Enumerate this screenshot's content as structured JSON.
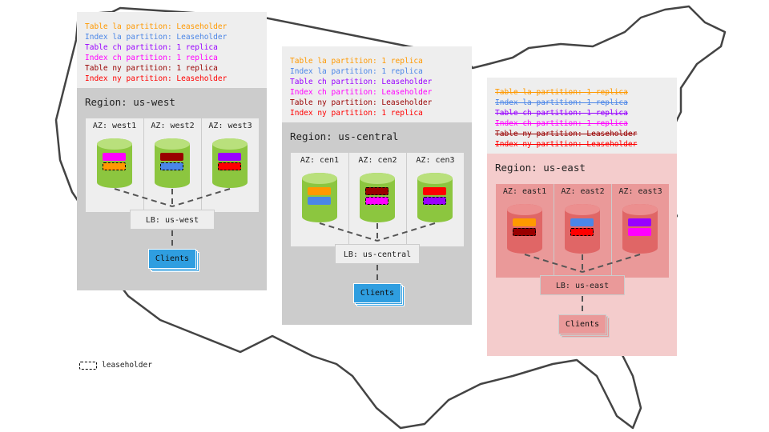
{
  "leaseholder_legend": {
    "label": "leaseholder"
  },
  "regions": [
    {
      "key": "us-west",
      "title": "Region: us-west",
      "theme": {
        "region_bg": "#cccccc",
        "az_bg": "#eeeeee",
        "az_border": "#cccccc",
        "cyl": "#8cc63f",
        "cyl_top": "#b9e07c",
        "lb_bg": "#eeeeee",
        "lb_border": "#cccccc",
        "clients_bg": "#2f9ee0",
        "clients_border": "#ffffff"
      },
      "legend": [
        {
          "text": "Table la partition: Leaseholder",
          "color": "#ff9900",
          "strike": false
        },
        {
          "text": "Index la partition: Leaseholder",
          "color": "#4a86e8",
          "strike": false
        },
        {
          "text": "Table ch partition: 1 replica",
          "color": "#9900ff",
          "strike": false
        },
        {
          "text": "Index ch partition: 1 replica",
          "color": "#ff00ff",
          "strike": false
        },
        {
          "text": "Table ny partition: 1 replica",
          "color": "#990000",
          "strike": false
        },
        {
          "text": "Index ny partition: Leaseholder",
          "color": "#ff0000",
          "strike": false
        }
      ],
      "azs": [
        {
          "label": "AZ: west1",
          "shards": [
            {
              "color": "#ff00ff",
              "leaseholder": false
            },
            {
              "color": "#ff9900",
              "leaseholder": true
            }
          ]
        },
        {
          "label": "AZ: west2",
          "shards": [
            {
              "color": "#990000",
              "leaseholder": false
            },
            {
              "color": "#4a86e8",
              "leaseholder": true
            }
          ]
        },
        {
          "label": "AZ: west3",
          "shards": [
            {
              "color": "#9900ff",
              "leaseholder": false
            },
            {
              "color": "#ff0000",
              "leaseholder": true
            }
          ]
        }
      ],
      "lb": "LB: us-west",
      "clients": "Clients"
    },
    {
      "key": "us-central",
      "title": "Region: us-central",
      "theme": {
        "region_bg": "#cccccc",
        "az_bg": "#eeeeee",
        "az_border": "#cccccc",
        "cyl": "#8cc63f",
        "cyl_top": "#b9e07c",
        "lb_bg": "#eeeeee",
        "lb_border": "#cccccc",
        "clients_bg": "#2f9ee0",
        "clients_border": "#ffffff"
      },
      "legend": [
        {
          "text": "Table la partition: 1 replica",
          "color": "#ff9900",
          "strike": false
        },
        {
          "text": "Index la partition: 1 replica",
          "color": "#4a86e8",
          "strike": false
        },
        {
          "text": "Table ch partition: Leaseholder",
          "color": "#9900ff",
          "strike": false
        },
        {
          "text": "Index ch partition: Leaseholder",
          "color": "#ff00ff",
          "strike": false
        },
        {
          "text": "Table ny partition: Leaseholder",
          "color": "#990000",
          "strike": false
        },
        {
          "text": "Index ny partition: 1 replica",
          "color": "#ff0000",
          "strike": false
        }
      ],
      "azs": [
        {
          "label": "AZ: cen1",
          "shards": [
            {
              "color": "#ff9900",
              "leaseholder": false
            },
            {
              "color": "#4a86e8",
              "leaseholder": false
            }
          ]
        },
        {
          "label": "AZ: cen2",
          "shards": [
            {
              "color": "#990000",
              "leaseholder": true
            },
            {
              "color": "#ff00ff",
              "leaseholder": true
            }
          ]
        },
        {
          "label": "AZ: cen3",
          "shards": [
            {
              "color": "#ff0000",
              "leaseholder": false
            },
            {
              "color": "#9900ff",
              "leaseholder": true
            }
          ]
        }
      ],
      "lb": "LB: us-central",
      "clients": "Clients"
    },
    {
      "key": "us-east",
      "title": "Region: us-east",
      "theme": {
        "region_bg": "#f4cccc",
        "az_bg": "#ea9999",
        "az_border": "#cccccc",
        "cyl": "#e06666",
        "cyl_top": "#ec8f8f",
        "lb_bg": "#ea9999",
        "lb_border": "#cccccc",
        "clients_bg": "#ea9999",
        "clients_border": "#cccccc"
      },
      "legend": [
        {
          "text": "Table la partition: 1 replica",
          "color": "#ff9900",
          "strike": true
        },
        {
          "text": "Index la partition: 1 replica",
          "color": "#4a86e8",
          "strike": true
        },
        {
          "text": "Table ch partition: 1 replica",
          "color": "#9900ff",
          "strike": true
        },
        {
          "text": "Index ch partition: 1 replica",
          "color": "#ff00ff",
          "strike": true
        },
        {
          "text": "Table ny partition: Leaseholder",
          "color": "#990000",
          "strike": true
        },
        {
          "text": "Index ny partition: Leaseholder",
          "color": "#ff0000",
          "strike": true
        }
      ],
      "azs": [
        {
          "label": "AZ: east1",
          "shards": [
            {
              "color": "#ff9900",
              "leaseholder": false
            },
            {
              "color": "#990000",
              "leaseholder": true
            }
          ]
        },
        {
          "label": "AZ: east2",
          "shards": [
            {
              "color": "#4a86e8",
              "leaseholder": false
            },
            {
              "color": "#ff0000",
              "leaseholder": true
            }
          ]
        },
        {
          "label": "AZ: east3",
          "shards": [
            {
              "color": "#9900ff",
              "leaseholder": false
            },
            {
              "color": "#ff00ff",
              "leaseholder": false
            }
          ]
        }
      ],
      "lb": "LB: us-east",
      "clients": "Clients"
    }
  ]
}
